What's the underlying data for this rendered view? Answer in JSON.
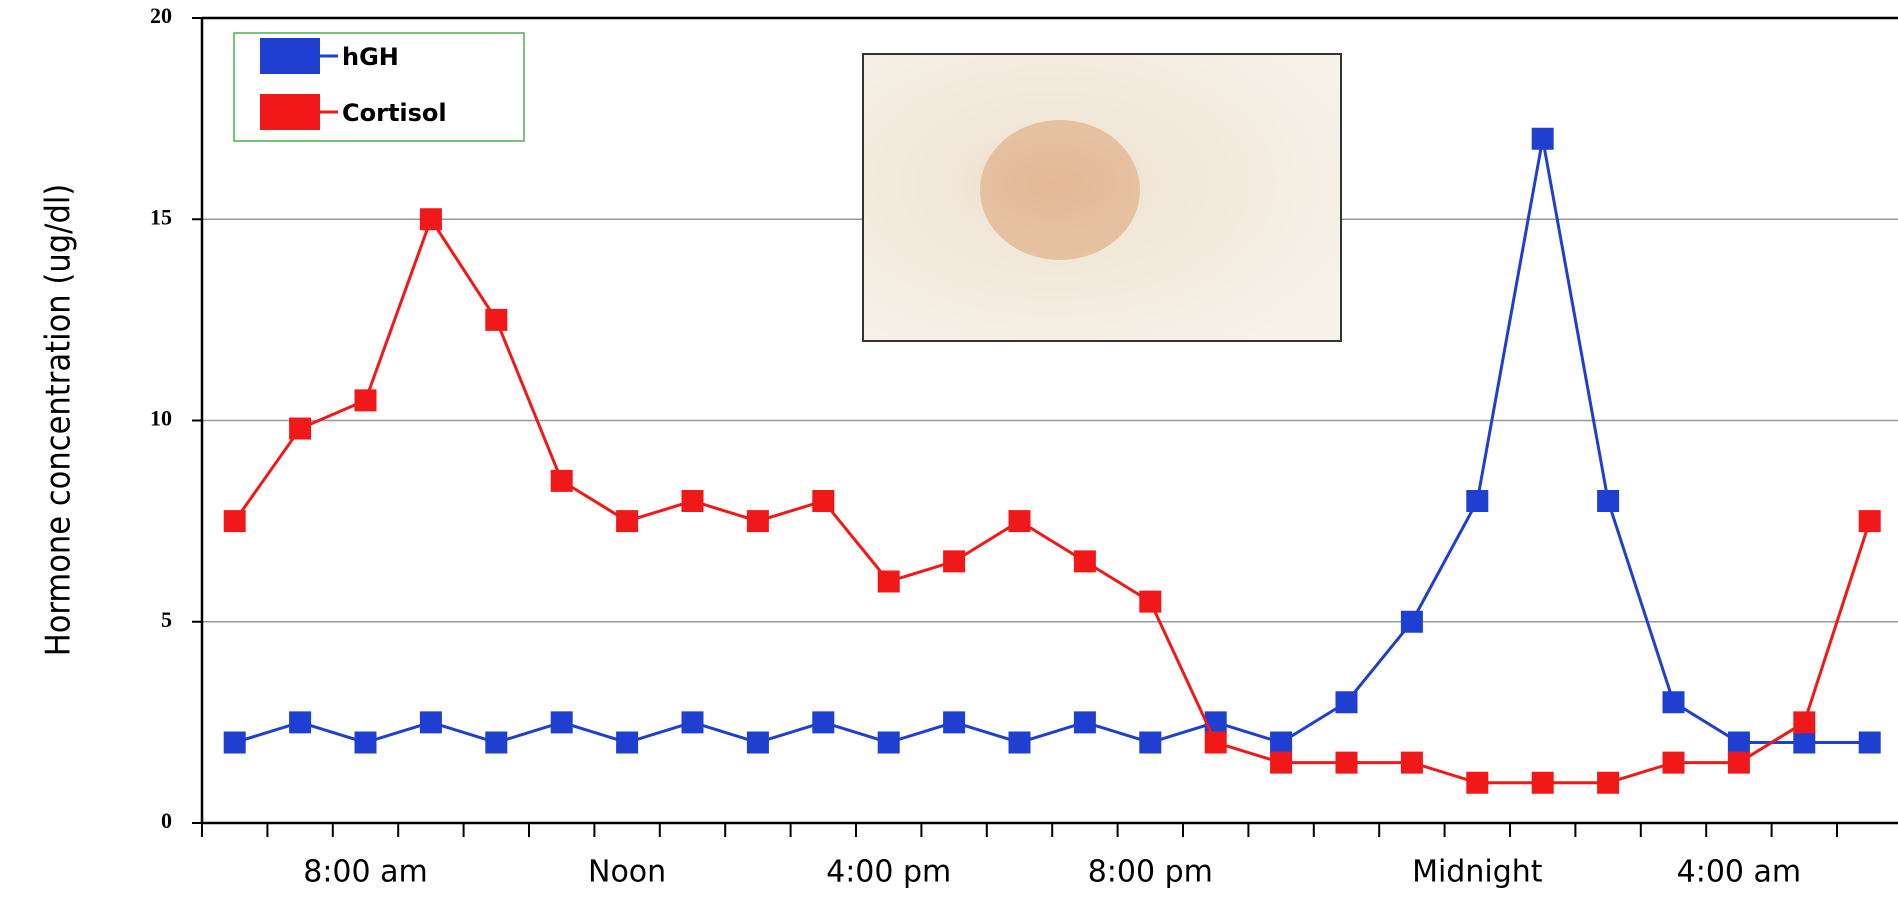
{
  "chart_data": {
    "type": "line",
    "y_label": "Hormone concentration (ug/dl)",
    "categories": [
      null,
      null,
      "8:00 am",
      null,
      null,
      null,
      "Noon",
      null,
      null,
      null,
      "4:00 pm",
      null,
      null,
      null,
      "8:00 pm",
      null,
      null,
      null,
      null,
      "Midnight",
      null,
      null,
      null,
      "4:00 am",
      null,
      null
    ],
    "series": [
      {
        "name": "hGH",
        "color": "#1f3fd0",
        "values": [
          2,
          2.5,
          2,
          2.5,
          2,
          2.5,
          2,
          2.5,
          2,
          2.5,
          2,
          2.5,
          2,
          2.5,
          2,
          2.5,
          2,
          3,
          5,
          8,
          17,
          8,
          3,
          2,
          2,
          2
        ]
      },
      {
        "name": "Cortisol",
        "color": "#f01818",
        "values": [
          7.5,
          9.8,
          10.5,
          15,
          12.5,
          8.5,
          7.5,
          8,
          7.5,
          8,
          6,
          6.5,
          7.5,
          6.5,
          5.5,
          2,
          1.5,
          1.5,
          1.5,
          1,
          1,
          1,
          1.5,
          1.5,
          2.5,
          7.5
        ]
      }
    ],
    "ylim": [
      0,
      20
    ],
    "yticks": [
      0,
      5,
      10,
      15,
      20
    ],
    "grid": true
  }
}
